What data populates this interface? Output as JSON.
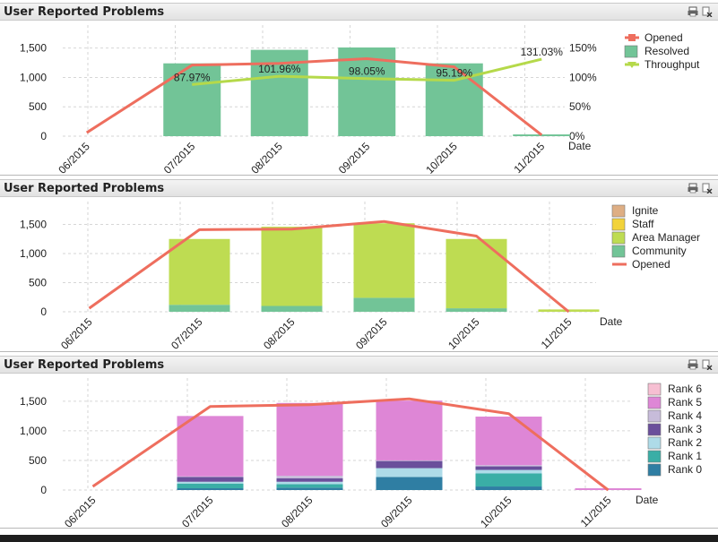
{
  "panels": [
    {
      "title": "User Reported Problems",
      "icons": [
        "print-icon",
        "clear-icon"
      ],
      "chart_data": {
        "type": "bar",
        "categories": [
          "06/2015",
          "07/2015",
          "08/2015",
          "09/2015",
          "10/2015",
          "11/2015"
        ],
        "xlabel": "Date",
        "ylim": [
          0,
          1800
        ],
        "yticks": [
          0,
          500,
          1000,
          1500
        ],
        "y2lim": [
          0,
          180
        ],
        "y2ticks": [
          0,
          50,
          100,
          150
        ],
        "y2tick_suffix": "%",
        "grid": true,
        "legend_position": "right",
        "series": [
          {
            "name": "Resolved",
            "kind": "bar",
            "color": "#72c497",
            "values": [
              0,
              1240,
              1470,
              1510,
              1240,
              30
            ]
          },
          {
            "name": "Opened",
            "kind": "line",
            "axis": "left",
            "color": "#ee6e5e",
            "values": [
              60,
              1210,
              1240,
              1320,
              1180,
              20
            ]
          },
          {
            "name": "Throughput",
            "kind": "line",
            "axis": "right",
            "color": "#b5d94a",
            "values": [
              null,
              87.97,
              101.96,
              98.05,
              95.19,
              131.03
            ],
            "labels": [
              "",
              "87.97%",
              "101.96%",
              "98.05%",
              "95.19%",
              "131.03%"
            ]
          }
        ],
        "legend": [
          {
            "name": "Opened",
            "marker": "line-square",
            "color": "#ee6e5e"
          },
          {
            "name": "Resolved",
            "marker": "box",
            "color": "#72c497"
          },
          {
            "name": "Throughput",
            "marker": "line-triangle",
            "color": "#b5d94a"
          }
        ]
      }
    },
    {
      "title": "User Reported Problems",
      "icons": [
        "print-icon",
        "clear-icon"
      ],
      "chart_data": {
        "type": "bar",
        "stacked": true,
        "categories": [
          "06/2015",
          "07/2015",
          "08/2015",
          "09/2015",
          "10/2015",
          "11/2015"
        ],
        "xlabel": "Date",
        "ylim": [
          0,
          1800
        ],
        "yticks": [
          0,
          500,
          1000,
          1500
        ],
        "grid": true,
        "legend_position": "right",
        "series": [
          {
            "name": "Community",
            "kind": "bar",
            "color": "#72c497",
            "values": [
              0,
              120,
              100,
              240,
              60,
              0
            ]
          },
          {
            "name": "Area Manager",
            "kind": "bar",
            "color": "#bedc52",
            "values": [
              0,
              1130,
              1360,
              1280,
              1190,
              40
            ]
          },
          {
            "name": "Staff",
            "kind": "bar",
            "color": "#f2d33a",
            "values": [
              0,
              0,
              0,
              0,
              0,
              0
            ]
          },
          {
            "name": "Ignite",
            "kind": "bar",
            "color": "#deae84",
            "values": [
              0,
              0,
              0,
              0,
              0,
              0
            ]
          },
          {
            "name": "Opened",
            "kind": "line",
            "color": "#ee6e5e",
            "values": [
              60,
              1410,
              1420,
              1550,
              1300,
              0
            ]
          }
        ],
        "legend": [
          {
            "name": "Ignite",
            "marker": "box",
            "color": "#deae84"
          },
          {
            "name": "Staff",
            "marker": "box",
            "color": "#f2d33a"
          },
          {
            "name": "Area Manager",
            "marker": "box",
            "color": "#bedc52"
          },
          {
            "name": "Community",
            "marker": "box",
            "color": "#72c497"
          },
          {
            "name": "Opened",
            "marker": "line",
            "color": "#ee6e5e"
          }
        ]
      }
    },
    {
      "title": "User Reported Problems",
      "icons": [
        "print-icon",
        "clear-icon"
      ],
      "chart_data": {
        "type": "bar",
        "stacked": true,
        "categories": [
          "06/2015",
          "07/2015",
          "08/2015",
          "09/2015",
          "10/2015",
          "11/2015"
        ],
        "xlabel": "Date",
        "ylim": [
          0,
          1800
        ],
        "yticks": [
          0,
          500,
          1000,
          1500
        ],
        "grid": true,
        "legend_position": "right",
        "series": [
          {
            "name": "Rank 0",
            "kind": "bar",
            "color": "#2f7ea3",
            "values": [
              0,
              30,
              40,
              220,
              60,
              0
            ]
          },
          {
            "name": "Rank 1",
            "kind": "bar",
            "color": "#3aaea6",
            "values": [
              0,
              80,
              60,
              0,
              220,
              0
            ]
          },
          {
            "name": "Rank 2",
            "kind": "bar",
            "color": "#aedbe8",
            "values": [
              0,
              30,
              40,
              150,
              60,
              0
            ]
          },
          {
            "name": "Rank 3",
            "kind": "bar",
            "color": "#6a4f9b",
            "values": [
              0,
              80,
              60,
              120,
              60,
              0
            ]
          },
          {
            "name": "Rank 4",
            "kind": "bar",
            "color": "#c7bcda",
            "values": [
              0,
              10,
              40,
              10,
              20,
              0
            ]
          },
          {
            "name": "Rank 5",
            "kind": "bar",
            "color": "#de86d6",
            "values": [
              0,
              1020,
              1230,
              1010,
              820,
              30
            ]
          },
          {
            "name": "Rank 6",
            "kind": "bar",
            "color": "#f6bfd2",
            "values": [
              0,
              0,
              0,
              0,
              0,
              0
            ]
          },
          {
            "name": "Opened",
            "kind": "line",
            "color": "#ee6e5e",
            "values": [
              60,
              1410,
              1440,
              1540,
              1290,
              0
            ]
          }
        ],
        "legend": [
          {
            "name": "Rank 6",
            "marker": "box",
            "color": "#f6bfd2"
          },
          {
            "name": "Rank 5",
            "marker": "box",
            "color": "#de86d6"
          },
          {
            "name": "Rank 4",
            "marker": "box",
            "color": "#c7bcda"
          },
          {
            "name": "Rank 3",
            "marker": "box",
            "color": "#6a4f9b"
          },
          {
            "name": "Rank 2",
            "marker": "box",
            "color": "#aedbe8"
          },
          {
            "name": "Rank 1",
            "marker": "box",
            "color": "#3aaea6"
          },
          {
            "name": "Rank 0",
            "marker": "box",
            "color": "#2f7ea3"
          }
        ]
      }
    }
  ]
}
